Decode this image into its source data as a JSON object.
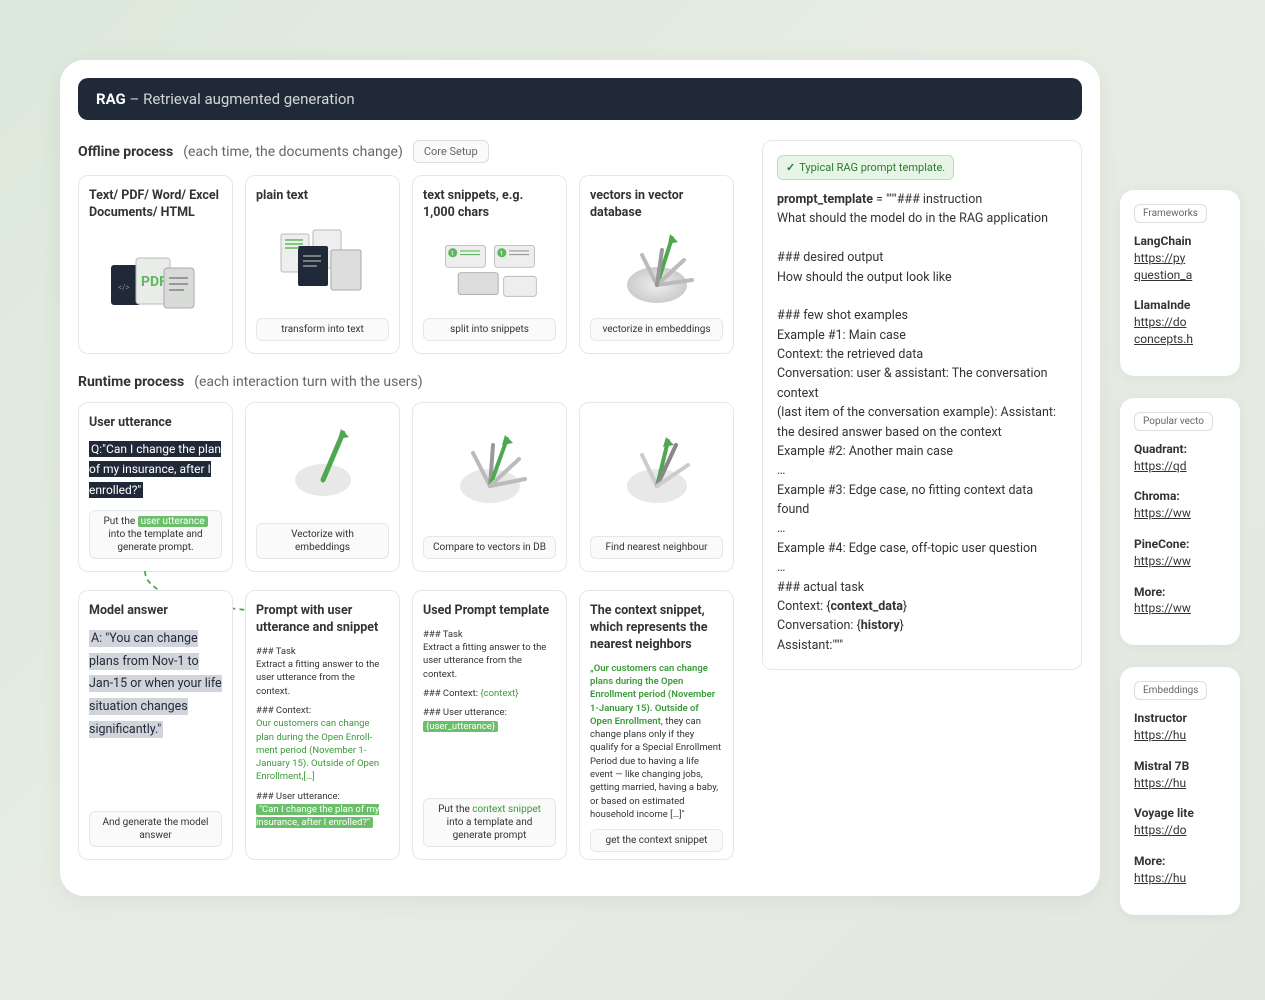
{
  "header": {
    "bold": "RAG",
    "rest": " – Retrieval augmented generation"
  },
  "offline": {
    "label_strong": "Offline process",
    "label_sub": "(each time, the documents change)",
    "badge": "Core Setup",
    "cards": [
      {
        "title": "Text/ PDF/ Word/ Excel Documents/ HTML",
        "caption": ""
      },
      {
        "title": "plain text",
        "caption": "transform into text"
      },
      {
        "title": "text snippets, e.g. 1,000 chars",
        "caption": "split into snippets"
      },
      {
        "title": "vectors in vector database",
        "caption": "vectorize in embeddings"
      }
    ]
  },
  "runtime": {
    "label_strong": "Runtime process",
    "label_sub": "(each interaction turn with the users)",
    "row1": [
      {
        "title": "User utterance",
        "utter": "Q:\"Can I change the plan of my insurance, after I enrolled?\"",
        "cap_pre": "Put the ",
        "cap_green": "user utterance",
        "cap_post": " into the template and generate prompt."
      },
      {
        "title": "",
        "caption": "Vectorize with embeddings"
      },
      {
        "title": "",
        "caption": "Compare to vectors in DB"
      },
      {
        "title": "",
        "caption": "Find nearest neighbour"
      }
    ],
    "row2": [
      {
        "title": "Model answer",
        "answer": "A: \"You can change plans from Nov-1 to Jan-15 or when your life situation changes significantly.\"",
        "caption": "And generate the model answer"
      },
      {
        "title": "Prompt with user utterance and snippet",
        "task_h": "### Task",
        "task_t": "Extract a fitting answer to the user utterance from the context.",
        "ctx_h": "### Context:",
        "ctx_t": "Our customers can change plan during the Open Enroll-ment period (November 1-January 15). Outside of Open Enrollment,[…]",
        "uu_h": "### User utterance:",
        "uu_t": "\"Can I change the plan of my insurance, after I enrolled?\""
      },
      {
        "title": "Used Prompt template",
        "task_h": "### Task",
        "task_t": "Extract a fitting answer to the user utterance from the context.",
        "ctx_line": "### Context: ",
        "ctx_var": "{context}",
        "uu_h": "### User utterance:",
        "uu_var": "{user_utterance}",
        "cap_pre": "Put the ",
        "cap_green": "context snippet",
        "cap_post": " into a template and generate prompt"
      },
      {
        "title": "The context snippet, which represents the nearest neighbors",
        "green": "„Our customers can change plans during the Open Enrollment period (November 1-January 15). Outside of Open Enrollment,",
        "rest": " they can change plans only if they qualify for a Special Enrollment Period due to having a life event — like changing jobs, getting married, having a baby, or based on estimated household income […]\"",
        "caption": "get the context snippet"
      }
    ]
  },
  "template": {
    "tag": "Typical RAG prompt template.",
    "lines": [
      "<b>prompt_template</b> = \"\"\"### instruction",
      "What should the model do in the RAG application",
      "",
      "### desired output",
      "How should the output look like",
      "",
      "### few shot examples",
      "Example #1: Main case",
      "Context: the retrieved data",
      "Conversation: user & assistant: The conversation context",
      "(last item of the conversation example): Assistant: the desired answer based on the context",
      "Example #2: Another main case",
      "…",
      "Example #3: Edge case, no fitting context data found",
      "…",
      "Example #4: Edge case, off-topic user question",
      "…",
      "### actual task",
      "Context: {<b>context_data</b>}",
      "Conversation: {<b>history</b>}",
      "Assistant:\"\"\""
    ]
  },
  "sidebar": {
    "panels": [
      {
        "badge": "Frameworks",
        "items": [
          {
            "name": "LangChain",
            "link": "https://py",
            "link2": "question_a"
          },
          {
            "name": "LlamaInde",
            "link": "https://do",
            "link2": "concepts.h"
          }
        ]
      },
      {
        "badge": "Popular vecto",
        "items": [
          {
            "name": "Quadrant:",
            "link": "https://qd"
          },
          {
            "name": "Chroma:",
            "link": "https://ww"
          },
          {
            "name": "PineCone:",
            "link": "https://ww"
          },
          {
            "name": "More:",
            "link": "https://ww"
          }
        ]
      },
      {
        "badge": "Embeddings",
        "items": [
          {
            "name": "Instructor",
            "link": "https://hu"
          },
          {
            "name": "Mistral 7B",
            "link": "https://hu"
          },
          {
            "name": "Voyage lite",
            "link": "https://do"
          },
          {
            "name": "More:",
            "link": "https://hu"
          }
        ]
      }
    ]
  },
  "colors": {
    "green": "#4fa84f",
    "dark": "#1f2937",
    "border": "#e5e7eb"
  }
}
